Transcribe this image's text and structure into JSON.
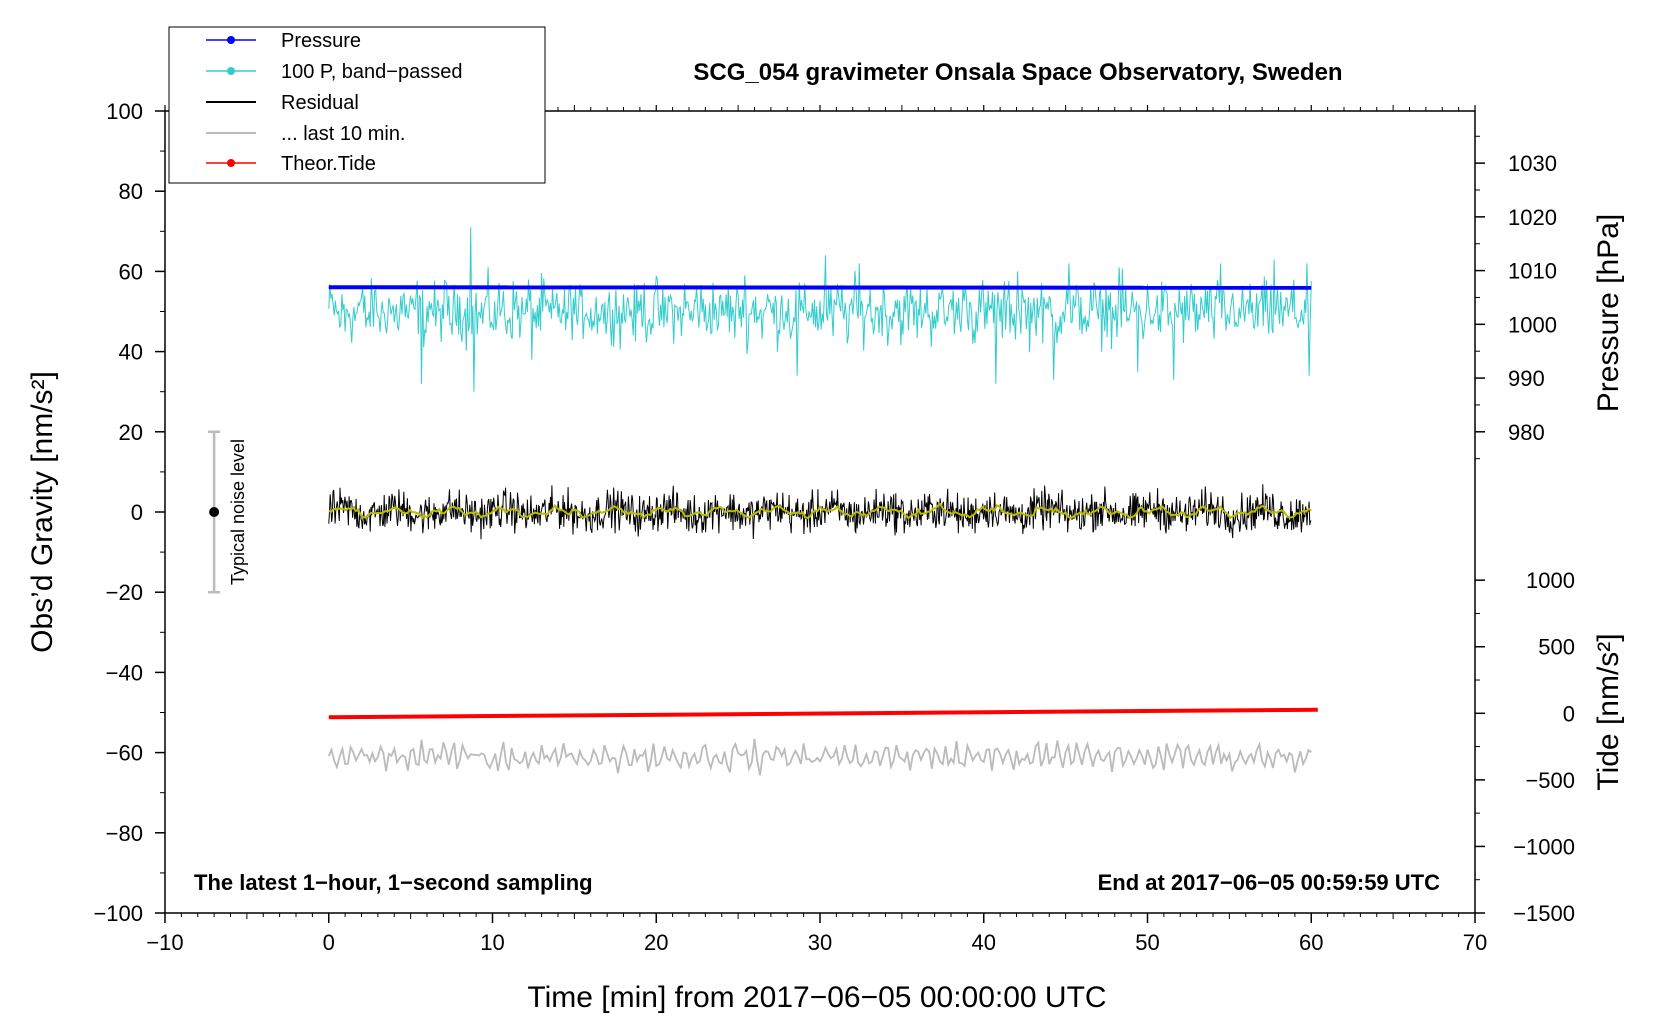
{
  "chart_data": {
    "type": "line",
    "title": "SCG_054 gravimeter Onsala Space Observatory, Sweden",
    "xlabel": "Time [min] from 2017−06−05 00:00:00 UTC",
    "ylabel_left": "Obs’d Gravity [nm/s²]",
    "ylabel_right_pressure": "Pressure [hPa]",
    "ylabel_right_tide": "Tide [nm/s²]",
    "xlim": [
      -10,
      70
    ],
    "ylim": [
      -100,
      100
    ],
    "x_ticks": [
      "−10",
      "0",
      "10",
      "20",
      "30",
      "40",
      "50",
      "60",
      "70"
    ],
    "x_tick_values": [
      -10,
      0,
      10,
      20,
      30,
      40,
      50,
      60,
      70
    ],
    "y_ticks": [
      "100",
      "80",
      "60",
      "40",
      "20",
      "0",
      "−20",
      "−40",
      "−60",
      "−80",
      "−100"
    ],
    "y_tick_values": [
      100,
      80,
      60,
      40,
      20,
      0,
      -20,
      -40,
      -60,
      -80,
      -100
    ],
    "pressure_axis": {
      "ticks": [
        "1030",
        "1020",
        "1010",
        "1000",
        "990",
        "980"
      ],
      "tick_values": [
        1030,
        1020,
        1010,
        1000,
        990,
        980
      ],
      "mapping": {
        "hpa": [
          980,
          1030
        ],
        "plot_y": [
          20,
          87
        ]
      }
    },
    "tide_axis": {
      "ticks": [
        "1000",
        "500",
        "0",
        "−500",
        "−1000",
        "−1500"
      ],
      "tick_values": [
        1000,
        500,
        0,
        -500,
        -1000,
        -1500
      ],
      "mapping": {
        "tide": [
          -1500,
          1000
        ],
        "plot_y": [
          -100,
          -17
        ]
      }
    },
    "legend": {
      "position": "top-left",
      "entries": [
        {
          "label": "Pressure",
          "color": "#0000ff",
          "marker": true
        },
        {
          "label": "100 P, band−passed",
          "color": "#33cccc",
          "marker": true
        },
        {
          "label": "Residual",
          "color": "#000000",
          "marker": false
        },
        {
          "label": "... last 10 min.",
          "color": "#bbbbbb",
          "marker": false
        },
        {
          "label": "Theor.Tide",
          "color": "#ff0000",
          "marker": true
        }
      ]
    },
    "series": [
      {
        "name": "Pressure",
        "color": "#0000ff",
        "axis": "pressure_hpa",
        "x_range": [
          0,
          60
        ],
        "level": 1006.9,
        "drift": -0.1
      },
      {
        "name": "100 P, band−passed",
        "color": "#33cccc",
        "axis": "gravity",
        "x_range": [
          0,
          60
        ],
        "center": 50,
        "amplitude": 6,
        "spikes": [
          [
            1,
            45
          ],
          [
            5.7,
            32
          ],
          [
            8.7,
            71
          ],
          [
            8.9,
            30
          ],
          [
            12.4,
            38
          ],
          [
            22.5,
            56
          ],
          [
            25.4,
            59
          ],
          [
            28.6,
            34
          ],
          [
            30.3,
            64
          ],
          [
            32.4,
            62
          ],
          [
            38.9,
            56
          ],
          [
            40.7,
            32
          ],
          [
            42.1,
            60
          ],
          [
            44.3,
            33
          ],
          [
            45.2,
            62
          ],
          [
            48.3,
            61
          ],
          [
            49.4,
            35
          ],
          [
            51.6,
            33
          ],
          [
            54.5,
            62
          ],
          [
            57.7,
            63
          ],
          [
            59.7,
            62
          ],
          [
            59.9,
            34
          ]
        ]
      },
      {
        "name": "Residual",
        "color": "#000000",
        "axis": "gravity",
        "x_range": [
          0,
          60
        ],
        "center": 0,
        "amplitude": 4
      },
      {
        "name": "Residual (smoothed)",
        "color": "#bbbb00",
        "axis": "gravity",
        "x_range": [
          0,
          60
        ],
        "center": 0,
        "amplitude": 1.2
      },
      {
        "name": "Theor.Tide",
        "color": "#ff0000",
        "axis": "tide_nms2",
        "x_range": [
          0,
          60.4
        ],
        "start": -30,
        "end": 27
      },
      {
        "name": "... last 10 min.",
        "color": "#bbbbbb",
        "axis": "gravity",
        "x_range": [
          0,
          60
        ],
        "center": -61,
        "amplitude": 3
      }
    ],
    "noise_level": {
      "label": "Typical noise level",
      "x": -7,
      "center": 0,
      "range": [
        -20,
        20
      ],
      "color": "#bbbbbb"
    },
    "annotations": {
      "bottom_left": "The latest 1−hour, 1−second sampling",
      "bottom_right": "End at 2017−06−05 00:59:59 UTC"
    }
  }
}
